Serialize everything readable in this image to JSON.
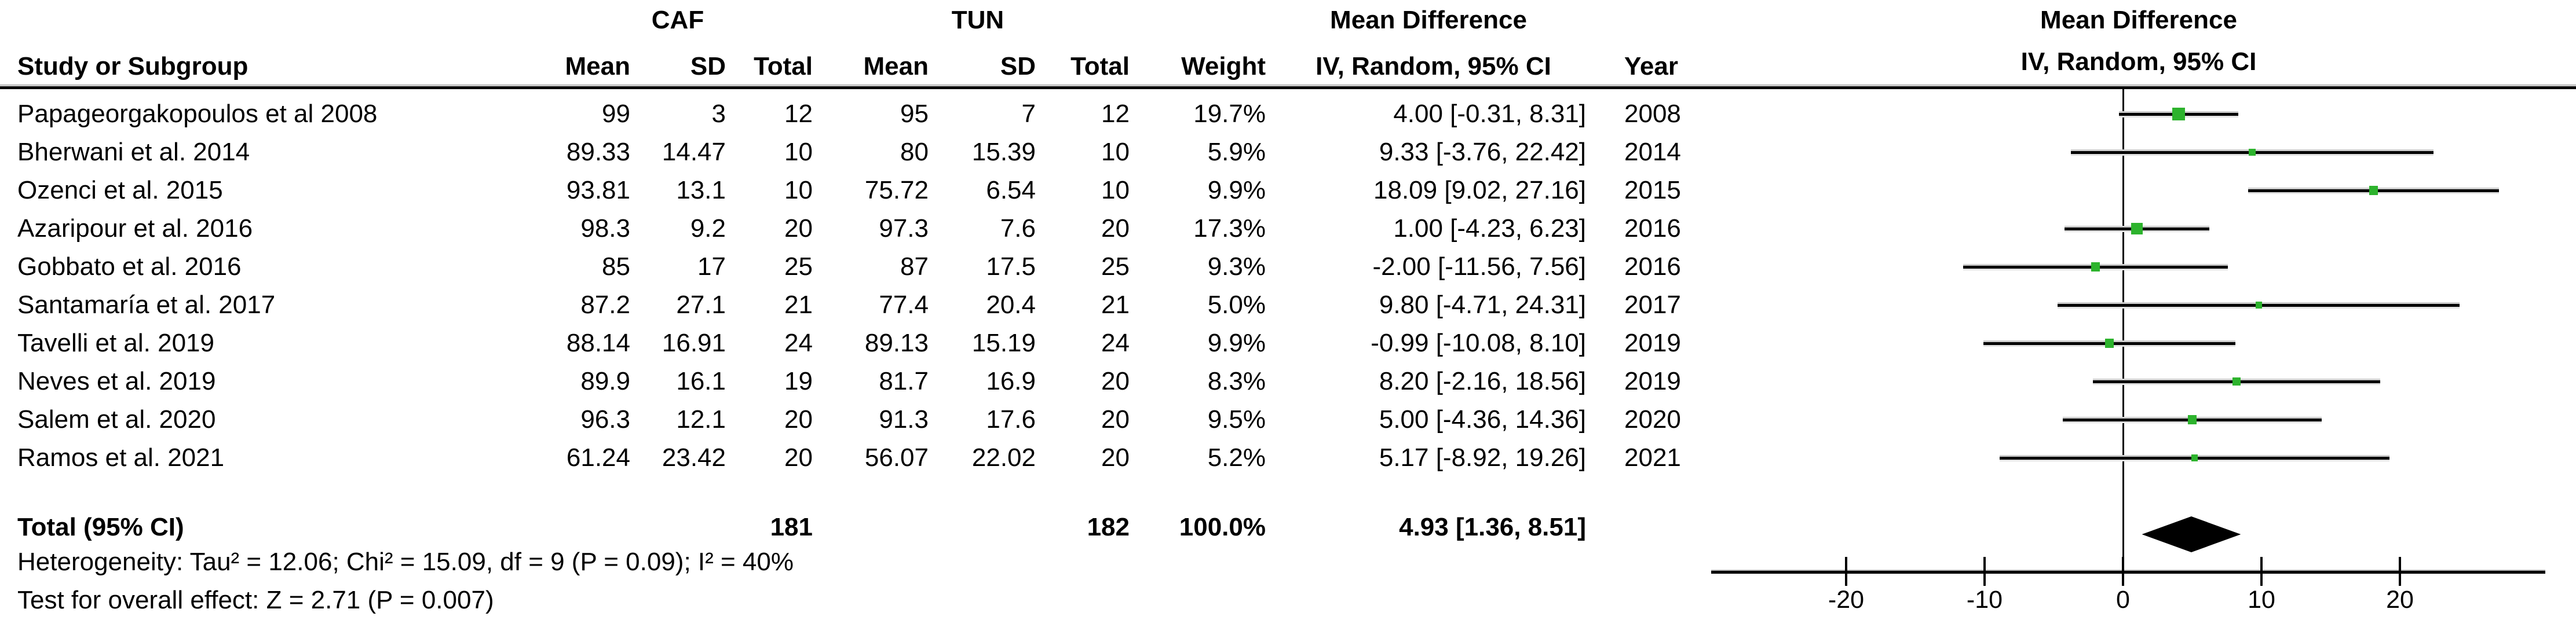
{
  "header": {
    "study_col": "Study or Subgroup",
    "group1": "CAF",
    "group2": "TUN",
    "mean": "Mean",
    "sd": "SD",
    "total": "Total",
    "weight": "Weight",
    "effect_title": "Mean Difference",
    "effect_sub": "IV, Random, 95% CI",
    "year": "Year",
    "plot_title": "Mean Difference",
    "plot_sub": "IV, Random, 95% CI"
  },
  "studies": [
    {
      "name": "Papageorgakopoulos et al 2008",
      "caf_mean": "99",
      "caf_sd": "3",
      "caf_total": "12",
      "tun_mean": "95",
      "tun_sd": "7",
      "tun_total": "12",
      "weight": "19.7%",
      "effect": "4.00 [-0.31, 8.31]",
      "year": "2008"
    },
    {
      "name": "Bherwani et al. 2014",
      "caf_mean": "89.33",
      "caf_sd": "14.47",
      "caf_total": "10",
      "tun_mean": "80",
      "tun_sd": "15.39",
      "tun_total": "10",
      "weight": "5.9%",
      "effect": "9.33 [-3.76, 22.42]",
      "year": "2014"
    },
    {
      "name": "Ozenci et al. 2015",
      "caf_mean": "93.81",
      "caf_sd": "13.1",
      "caf_total": "10",
      "tun_mean": "75.72",
      "tun_sd": "6.54",
      "tun_total": "10",
      "weight": "9.9%",
      "effect": "18.09 [9.02, 27.16]",
      "year": "2015"
    },
    {
      "name": "Azaripour et al. 2016",
      "caf_mean": "98.3",
      "caf_sd": "9.2",
      "caf_total": "20",
      "tun_mean": "97.3",
      "tun_sd": "7.6",
      "tun_total": "20",
      "weight": "17.3%",
      "effect": "1.00 [-4.23, 6.23]",
      "year": "2016"
    },
    {
      "name": "Gobbato et al. 2016",
      "caf_mean": "85",
      "caf_sd": "17",
      "caf_total": "25",
      "tun_mean": "87",
      "tun_sd": "17.5",
      "tun_total": "25",
      "weight": "9.3%",
      "effect": "-2.00 [-11.56, 7.56]",
      "year": "2016"
    },
    {
      "name": "Santamaría et al. 2017",
      "caf_mean": "87.2",
      "caf_sd": "27.1",
      "caf_total": "21",
      "tun_mean": "77.4",
      "tun_sd": "20.4",
      "tun_total": "21",
      "weight": "5.0%",
      "effect": "9.80 [-4.71, 24.31]",
      "year": "2017"
    },
    {
      "name": "Tavelli et al. 2019",
      "caf_mean": "88.14",
      "caf_sd": "16.91",
      "caf_total": "24",
      "tun_mean": "89.13",
      "tun_sd": "15.19",
      "tun_total": "24",
      "weight": "9.9%",
      "effect": "-0.99 [-10.08, 8.10]",
      "year": "2019"
    },
    {
      "name": "Neves et al. 2019",
      "caf_mean": "89.9",
      "caf_sd": "16.1",
      "caf_total": "19",
      "tun_mean": "81.7",
      "tun_sd": "16.9",
      "tun_total": "20",
      "weight": "8.3%",
      "effect": "8.20 [-2.16, 18.56]",
      "year": "2019"
    },
    {
      "name": "Salem et al. 2020",
      "caf_mean": "96.3",
      "caf_sd": "12.1",
      "caf_total": "20",
      "tun_mean": "91.3",
      "tun_sd": "17.6",
      "tun_total": "20",
      "weight": "9.5%",
      "effect": "5.00 [-4.36, 14.36]",
      "year": "2020"
    },
    {
      "name": "Ramos et al. 2021",
      "caf_mean": "61.24",
      "caf_sd": "23.42",
      "caf_total": "20",
      "tun_mean": "56.07",
      "tun_sd": "22.02",
      "tun_total": "20",
      "weight": "5.2%",
      "effect": "5.17 [-8.92, 19.26]",
      "year": "2021"
    }
  ],
  "total_row": {
    "label": "Total (95% CI)",
    "caf_total": "181",
    "tun_total": "182",
    "weight": "100.0%",
    "effect": "4.93 [1.36, 8.51]"
  },
  "footer": {
    "heterogeneity": "Heterogeneity: Tau² = 12.06; Chi² = 15.09, df = 9 (P = 0.09); I² = 40%",
    "overall": "Test for overall effect: Z = 2.71 (P = 0.007)"
  },
  "colors": {
    "marker_green": "#2db32d",
    "ci_black": "#000000"
  },
  "chart_data": {
    "type": "scatter",
    "subtype": "forest-plot",
    "title": "Mean Difference",
    "subtitle": "IV, Random, 95% CI",
    "x_ticks": [
      -20,
      -10,
      0,
      10,
      20
    ],
    "xlim": [
      -29.8,
      30.5
    ],
    "null_line": 0,
    "marker_color": "#2db32d",
    "ci_color": "#000000",
    "diamond_color": "#000000",
    "series": [
      {
        "name": "Papageorgakopoulos et al 2008",
        "md": 4.0,
        "ci": [
          -0.31,
          8.31
        ],
        "weight_pct": 19.7,
        "year": 2008
      },
      {
        "name": "Bherwani et al. 2014",
        "md": 9.33,
        "ci": [
          -3.76,
          22.42
        ],
        "weight_pct": 5.9,
        "year": 2014
      },
      {
        "name": "Ozenci et al. 2015",
        "md": 18.09,
        "ci": [
          9.02,
          27.16
        ],
        "weight_pct": 9.9,
        "year": 2015
      },
      {
        "name": "Azaripour et al. 2016",
        "md": 1.0,
        "ci": [
          -4.23,
          6.23
        ],
        "weight_pct": 17.3,
        "year": 2016
      },
      {
        "name": "Gobbato et al. 2016",
        "md": -2.0,
        "ci": [
          -11.56,
          7.56
        ],
        "weight_pct": 9.3,
        "year": 2016
      },
      {
        "name": "Santamaría et al. 2017",
        "md": 9.8,
        "ci": [
          -4.71,
          24.31
        ],
        "weight_pct": 5.0,
        "year": 2017
      },
      {
        "name": "Tavelli et al. 2019",
        "md": -0.99,
        "ci": [
          -10.08,
          8.1
        ],
        "weight_pct": 9.9,
        "year": 2019
      },
      {
        "name": "Neves et al. 2019",
        "md": 8.2,
        "ci": [
          -2.16,
          18.56
        ],
        "weight_pct": 8.3,
        "year": 2019
      },
      {
        "name": "Salem et al. 2020",
        "md": 5.0,
        "ci": [
          -4.36,
          14.36
        ],
        "weight_pct": 9.5,
        "year": 2020
      },
      {
        "name": "Ramos et al. 2021",
        "md": 5.17,
        "ci": [
          -8.92,
          19.26
        ],
        "weight_pct": 5.2,
        "year": 2021
      }
    ],
    "summary": {
      "label": "Total (95% CI)",
      "md": 4.93,
      "ci": [
        1.36,
        8.51
      ],
      "weight_pct": 100.0
    }
  }
}
